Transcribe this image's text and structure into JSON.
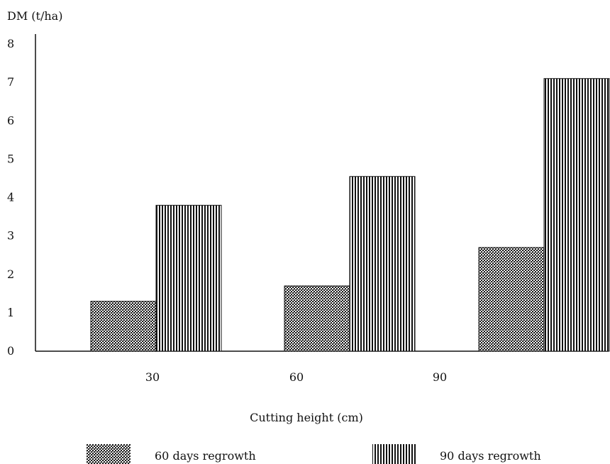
{
  "chart_data": {
    "type": "bar",
    "ylabel": "DM (t/ha)",
    "xlabel": "Cutting height (cm)",
    "categories": [
      "30",
      "60",
      "90"
    ],
    "ylim": [
      0,
      8
    ],
    "yticks": [
      "0",
      "1",
      "2",
      "3",
      "4",
      "5",
      "6",
      "7",
      "8"
    ],
    "grid": false,
    "legend_position": "bottom",
    "series": [
      {
        "name": "60 days regrowth",
        "pattern": "crosshatch",
        "values": [
          1.3,
          1.7,
          2.7
        ]
      },
      {
        "name": "90 days regrowth",
        "pattern": "vertical-lines",
        "values": [
          3.8,
          4.55,
          7.1
        ]
      }
    ]
  }
}
